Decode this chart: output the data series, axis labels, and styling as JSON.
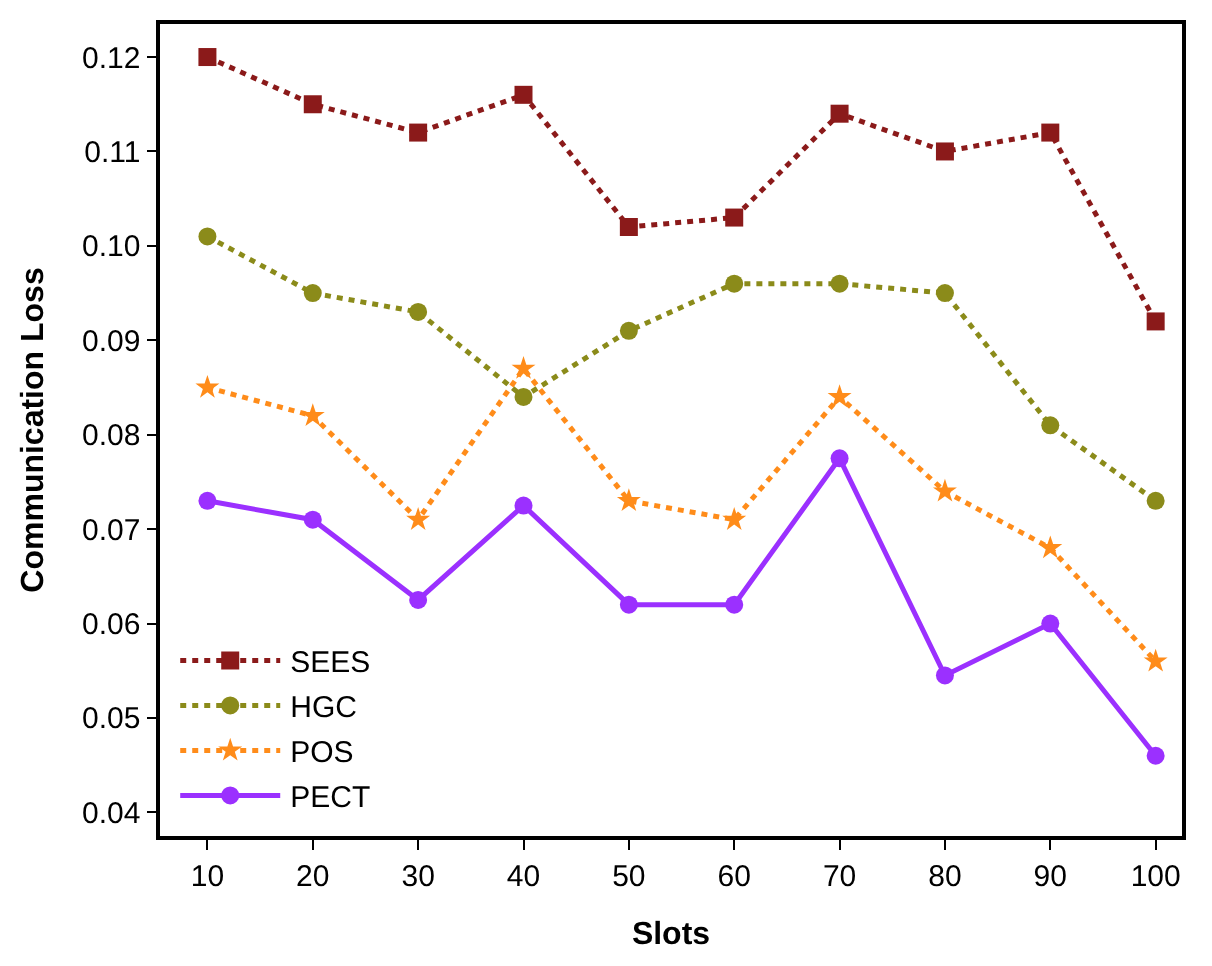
{
  "chart_data": {
    "type": "line",
    "xlabel": "Slots",
    "ylabel": "Communication Loss",
    "x": [
      10,
      20,
      30,
      40,
      50,
      60,
      70,
      80,
      90,
      100
    ],
    "series": [
      {
        "name": "SEES",
        "color": "#8b1a1a",
        "marker": "square",
        "line_style": "dotted",
        "values": [
          0.12,
          0.115,
          0.112,
          0.116,
          0.102,
          0.103,
          0.114,
          0.11,
          0.112,
          0.092
        ]
      },
      {
        "name": "HGC",
        "color": "#8b8b1a",
        "marker": "circle",
        "line_style": "dotted",
        "values": [
          0.101,
          0.095,
          0.093,
          0.084,
          0.091,
          0.096,
          0.096,
          0.095,
          0.081,
          0.073
        ]
      },
      {
        "name": "POS",
        "color": "#ff8c1a",
        "marker": "star",
        "line_style": "dotted",
        "values": [
          0.085,
          0.082,
          0.071,
          0.087,
          0.073,
          0.071,
          0.084,
          0.074,
          0.068,
          0.056
        ]
      },
      {
        "name": "PECT",
        "color": "#9b30ff",
        "marker": "circle",
        "line_style": "solid",
        "values": [
          0.073,
          0.071,
          0.0625,
          0.0725,
          0.062,
          0.062,
          0.0775,
          0.0545,
          0.06,
          0.046
        ]
      }
    ],
    "xlim": [
      5.5,
      102.5
    ],
    "xticks": [
      10,
      20,
      30,
      40,
      50,
      60,
      70,
      80,
      90,
      100
    ],
    "ylim": [
      0.0375,
      0.1235
    ],
    "yticks": [
      {
        "value": 0.04,
        "label": "0.04"
      },
      {
        "value": 0.05,
        "label": "0.05"
      },
      {
        "value": 0.06,
        "label": "0.06"
      },
      {
        "value": 0.07,
        "label": "0.07"
      },
      {
        "value": 0.08,
        "label": "0.08"
      },
      {
        "value": 0.09,
        "label": "0.09"
      },
      {
        "value": 0.1,
        "label": "0.10"
      },
      {
        "value": 0.11,
        "label": "0.11"
      },
      {
        "value": 0.12,
        "label": "0.12"
      }
    ],
    "legend": "bottom left"
  }
}
